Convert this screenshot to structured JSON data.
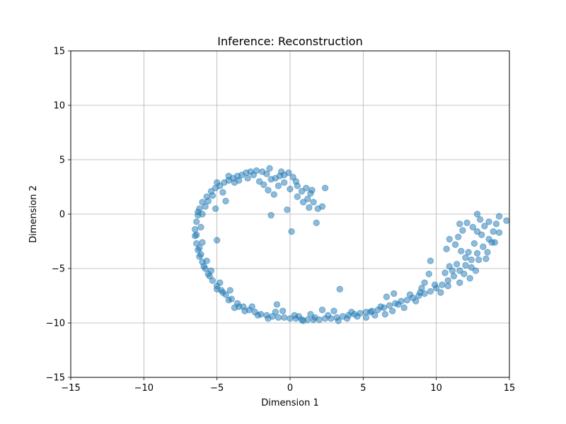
{
  "chart_data": {
    "type": "scatter",
    "title": "Inference: Reconstruction",
    "xlabel": "Dimension 1",
    "ylabel": "Dimension 2",
    "xlim": [
      -15,
      15
    ],
    "ylim": [
      -15,
      15
    ],
    "xticks": [
      -15,
      -10,
      -5,
      0,
      5,
      10,
      15
    ],
    "yticks": [
      -15,
      -10,
      -5,
      0,
      5,
      10,
      15
    ],
    "xtick_labels": [
      "−15",
      "−10",
      "−5",
      "0",
      "5",
      "10",
      "15"
    ],
    "ytick_labels": [
      "−15",
      "−10",
      "−5",
      "0",
      "5",
      "10",
      "15"
    ],
    "grid": true,
    "marker_color": "#1f77b4",
    "marker_alpha": 0.5,
    "series": [
      {
        "points": [
          [
            2.4,
            2.4
          ],
          [
            2.2,
            0.7
          ],
          [
            1.9,
            0.5
          ],
          [
            1.6,
            1.1
          ],
          [
            1.3,
            0.6
          ],
          [
            1.2,
            1.4
          ],
          [
            1.5,
            2.2
          ],
          [
            1.1,
            2.4
          ],
          [
            0.8,
            2.1
          ],
          [
            0.5,
            2.6
          ],
          [
            0.4,
            3.0
          ],
          [
            0.2,
            3.4
          ],
          [
            -0.1,
            3.8
          ],
          [
            -0.4,
            3.6
          ],
          [
            -0.7,
            3.5
          ],
          [
            -1.0,
            3.3
          ],
          [
            -1.3,
            3.2
          ],
          [
            -1.6,
            3.7
          ],
          [
            -1.9,
            3.9
          ],
          [
            -2.3,
            4.0
          ],
          [
            -2.7,
            3.9
          ],
          [
            -3.0,
            3.8
          ],
          [
            -3.3,
            3.6
          ],
          [
            -3.6,
            3.5
          ],
          [
            -3.9,
            3.3
          ],
          [
            -4.2,
            3.1
          ],
          [
            -4.5,
            2.9
          ],
          [
            -4.8,
            2.6
          ],
          [
            -5.1,
            2.4
          ],
          [
            -5.4,
            2.1
          ],
          [
            -5.7,
            1.6
          ],
          [
            -6.0,
            1.1
          ],
          [
            -6.2,
            0.5
          ],
          [
            -6.3,
            -0.1
          ],
          [
            -6.4,
            -0.7
          ],
          [
            -6.5,
            -1.4
          ],
          [
            -6.5,
            -2.0
          ],
          [
            -6.4,
            -2.7
          ],
          [
            -6.3,
            -3.3
          ],
          [
            -6.2,
            -3.9
          ],
          [
            -6.0,
            -4.4
          ],
          [
            -5.8,
            -5.0
          ],
          [
            -5.6,
            -5.5
          ],
          [
            -5.3,
            -6.1
          ],
          [
            -5.0,
            -6.6
          ],
          [
            -4.7,
            -7.0
          ],
          [
            -4.4,
            -7.4
          ],
          [
            -4.0,
            -7.8
          ],
          [
            -3.6,
            -8.2
          ],
          [
            -3.2,
            -8.5
          ],
          [
            -2.8,
            -8.8
          ],
          [
            -2.4,
            -9.0
          ],
          [
            -2.0,
            -9.2
          ],
          [
            -1.6,
            -9.3
          ],
          [
            -1.2,
            -9.4
          ],
          [
            -0.8,
            -9.5
          ],
          [
            -0.4,
            -9.5
          ],
          [
            0.0,
            -9.6
          ],
          [
            0.4,
            -9.6
          ],
          [
            0.8,
            -9.7
          ],
          [
            1.2,
            -9.7
          ],
          [
            1.6,
            -9.7
          ],
          [
            2.0,
            -9.7
          ],
          [
            2.4,
            -9.6
          ],
          [
            2.8,
            -9.6
          ],
          [
            3.2,
            -9.5
          ],
          [
            3.6,
            -9.4
          ],
          [
            4.0,
            -9.3
          ],
          [
            4.4,
            -9.2
          ],
          [
            4.8,
            -9.1
          ],
          [
            5.2,
            -9.0
          ],
          [
            5.6,
            -8.9
          ],
          [
            6.0,
            -8.8
          ],
          [
            6.4,
            -8.6
          ],
          [
            6.8,
            -8.4
          ],
          [
            7.2,
            -8.2
          ],
          [
            7.6,
            -8.0
          ],
          [
            8.0,
            -7.9
          ],
          [
            8.4,
            -7.7
          ],
          [
            8.8,
            -7.5
          ],
          [
            9.2,
            -7.3
          ],
          [
            9.6,
            -7.1
          ],
          [
            10.0,
            -6.8
          ],
          [
            10.4,
            -6.5
          ],
          [
            10.8,
            -6.1
          ],
          [
            11.2,
            -5.7
          ],
          [
            11.6,
            -5.2
          ],
          [
            12.0,
            -4.7
          ],
          [
            12.4,
            -4.2
          ],
          [
            12.8,
            -3.6
          ],
          [
            13.2,
            -3.0
          ],
          [
            13.6,
            -2.3
          ],
          [
            13.9,
            -1.6
          ],
          [
            14.1,
            -0.9
          ],
          [
            14.3,
            -0.2
          ],
          [
            14.8,
            -0.6
          ],
          [
            12.8,
            0.0
          ],
          [
            13.0,
            -0.5
          ],
          [
            12.5,
            -1.2
          ],
          [
            11.8,
            -1.5
          ],
          [
            11.5,
            -2.1
          ],
          [
            11.3,
            -2.8
          ],
          [
            11.7,
            -3.4
          ],
          [
            12.0,
            -4.0
          ],
          [
            11.4,
            -4.6
          ],
          [
            10.9,
            -4.8
          ],
          [
            10.6,
            -5.4
          ],
          [
            11.6,
            -6.3
          ],
          [
            12.3,
            -5.9
          ],
          [
            12.7,
            -5.2
          ],
          [
            13.4,
            -4.1
          ],
          [
            13.8,
            -2.6
          ],
          [
            10.9,
            -2.3
          ],
          [
            10.7,
            -3.2
          ],
          [
            9.6,
            -4.3
          ],
          [
            9.5,
            -5.5
          ],
          [
            9.2,
            -6.3
          ],
          [
            8.9,
            -7.2
          ],
          [
            8.2,
            -7.4
          ],
          [
            7.8,
            -8.6
          ],
          [
            7.0,
            -8.9
          ],
          [
            6.5,
            -9.2
          ],
          [
            5.8,
            -9.3
          ],
          [
            5.2,
            -9.5
          ],
          [
            4.6,
            -9.4
          ],
          [
            3.9,
            -9.6
          ],
          [
            3.4,
            -6.9
          ],
          [
            6.6,
            -7.6
          ],
          [
            7.1,
            -7.3
          ],
          [
            3.0,
            -8.9
          ],
          [
            2.2,
            -8.8
          ],
          [
            1.4,
            -9.2
          ],
          [
            0.9,
            -9.8
          ],
          [
            0.3,
            -9.3
          ],
          [
            -0.5,
            -8.9
          ],
          [
            -0.9,
            -8.3
          ],
          [
            -1.5,
            -9.6
          ],
          [
            -2.6,
            -8.5
          ],
          [
            -3.1,
            -8.9
          ],
          [
            -3.5,
            -8.5
          ],
          [
            -4.2,
            -7.9
          ],
          [
            -4.6,
            -7.2
          ],
          [
            -5.0,
            -6.9
          ],
          [
            -5.5,
            -5.7
          ],
          [
            -5.9,
            -4.8
          ],
          [
            -6.1,
            -3.7
          ],
          [
            -6.0,
            -2.6
          ],
          [
            -5.0,
            -2.4
          ],
          [
            -6.1,
            -1.2
          ],
          [
            -6.0,
            0.0
          ],
          [
            -5.8,
            0.7
          ],
          [
            -5.1,
            0.5
          ],
          [
            -4.4,
            1.2
          ],
          [
            -4.6,
            2.0
          ],
          [
            -5.0,
            2.9
          ],
          [
            -4.2,
            3.5
          ],
          [
            -3.5,
            3.1
          ],
          [
            -2.9,
            3.3
          ],
          [
            -2.1,
            3.0
          ],
          [
            -1.8,
            2.7
          ],
          [
            -1.5,
            2.2
          ],
          [
            -1.1,
            1.8
          ],
          [
            -0.8,
            2.6
          ],
          [
            -0.4,
            2.9
          ],
          [
            0.0,
            2.3
          ],
          [
            0.5,
            1.6
          ],
          [
            0.9,
            1.1
          ],
          [
            1.4,
            1.9
          ],
          [
            -1.3,
            -0.1
          ],
          [
            -0.2,
            0.4
          ],
          [
            0.1,
            -1.6
          ],
          [
            1.8,
            -0.8
          ],
          [
            -0.6,
            3.9
          ],
          [
            -1.4,
            4.2
          ],
          [
            -2.5,
            3.6
          ],
          [
            -3.8,
            2.9
          ],
          [
            -5.3,
            1.7
          ],
          [
            -5.6,
            1.2
          ],
          [
            -6.3,
            0.2
          ],
          [
            -6.4,
            -1.9
          ],
          [
            -6.2,
            -3.1
          ],
          [
            -5.7,
            -4.3
          ],
          [
            -5.4,
            -5.2
          ],
          [
            -4.8,
            -6.3
          ],
          [
            -4.1,
            -7.0
          ],
          [
            -3.8,
            -8.6
          ],
          [
            -2.2,
            -9.3
          ],
          [
            -1.0,
            -9.0
          ],
          [
            0.6,
            -9.4
          ],
          [
            1.7,
            -9.5
          ],
          [
            2.6,
            -9.3
          ],
          [
            3.3,
            -9.8
          ],
          [
            4.2,
            -9.0
          ],
          [
            5.5,
            -9.0
          ],
          [
            6.2,
            -8.5
          ],
          [
            7.4,
            -8.3
          ],
          [
            8.6,
            -8.0
          ],
          [
            9.0,
            -6.8
          ],
          [
            9.9,
            -6.5
          ],
          [
            10.3,
            -7.2
          ],
          [
            10.8,
            -6.6
          ],
          [
            11.1,
            -5.2
          ],
          [
            11.9,
            -5.5
          ],
          [
            12.2,
            -3.5
          ],
          [
            12.6,
            -2.7
          ],
          [
            13.1,
            -1.9
          ],
          [
            13.3,
            -1.1
          ],
          [
            13.6,
            -0.7
          ],
          [
            12.1,
            -0.8
          ],
          [
            11.6,
            -0.9
          ],
          [
            14.3,
            -1.7
          ],
          [
            14.0,
            -2.6
          ],
          [
            13.5,
            -3.5
          ],
          [
            12.9,
            -4.2
          ],
          [
            12.4,
            -4.9
          ],
          [
            12.8,
            -1.6
          ]
        ]
      }
    ]
  }
}
